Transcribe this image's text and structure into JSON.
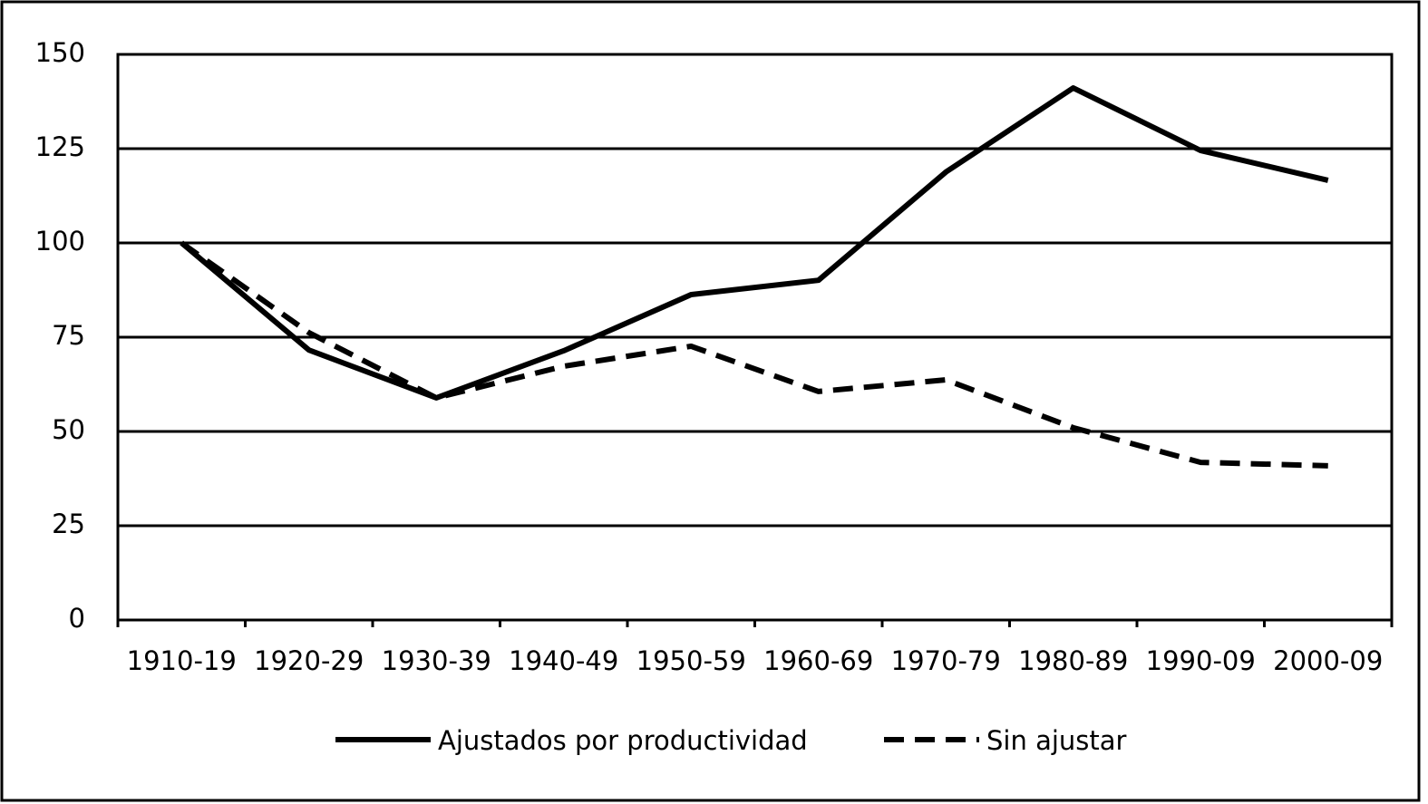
{
  "chart_data": {
    "type": "line",
    "categories": [
      "1910-19",
      "1920-29",
      "1930-39",
      "1940-49",
      "1950-59",
      "1960-69",
      "1970-79",
      "1980-89",
      "1990-09",
      "2000-09"
    ],
    "series": [
      {
        "name": "Ajustados por productividad",
        "color": "#000000",
        "line_style": "solid",
        "values": [
          100,
          71.6,
          58.9,
          71.4,
          86.3,
          90.1,
          118.8,
          141.1,
          124.5,
          116.6
        ]
      },
      {
        "name": "Sin ajustar",
        "color": "#000000",
        "line_style": "dashed",
        "values": [
          100,
          76.2,
          58.9,
          67.3,
          72.6,
          60.6,
          63.7,
          51,
          41.8,
          40.9
        ]
      }
    ],
    "ylim": [
      0,
      150
    ],
    "yticks": [
      0,
      25,
      50,
      75,
      100,
      125,
      150
    ],
    "grid": true,
    "legend": "bottom"
  }
}
